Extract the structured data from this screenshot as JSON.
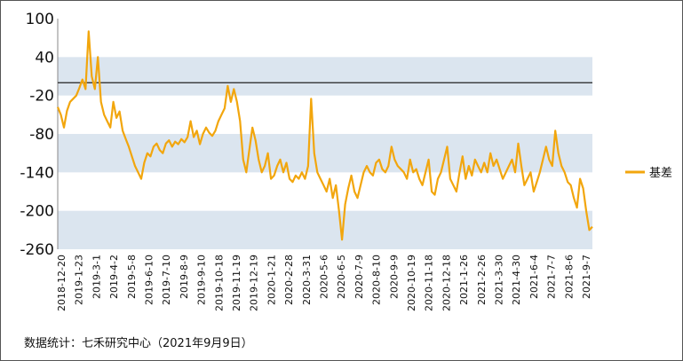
{
  "chart_data": {
    "type": "line",
    "ylim": [
      -260,
      100
    ],
    "yticks": [
      100,
      40,
      -20,
      -80,
      -140,
      -200,
      -260
    ],
    "reference_line": 0,
    "band_color": "#dbe5ef",
    "grid": false,
    "legend_position": "right",
    "x_tick_labels": [
      "2018-12-20",
      "2019-1-23",
      "2019-3-1",
      "2019-4-2",
      "2019-5-8",
      "2019-6-10",
      "2019-7-10",
      "2019-8-9",
      "2019-9-10",
      "2019-10-18",
      "2019-11-19",
      "2019-12-19",
      "2020-1-21",
      "2020-2-28",
      "2020-3-31",
      "2020-5-6",
      "2020-6-5",
      "2020-7-9",
      "2020-8-10",
      "2020-9-9",
      "2020-10-19",
      "2020-11-18",
      "2020-12-18",
      "2021-1-26",
      "2021-2-26",
      "2021-3-30",
      "2021-4-30",
      "2021-6-4",
      "2021-7-7",
      "2021-8-6",
      "2021-9-7"
    ],
    "series": [
      {
        "name": "基差",
        "color": "#f2a60d",
        "values": [
          -38,
          -50,
          -70,
          -44,
          -30,
          -25,
          -20,
          -8,
          5,
          -10,
          80,
          10,
          -10,
          40,
          -30,
          -50,
          -60,
          -70,
          -30,
          -55,
          -45,
          -75,
          -88,
          -100,
          -115,
          -130,
          -140,
          -150,
          -125,
          -110,
          -115,
          -100,
          -95,
          -105,
          -110,
          -95,
          -90,
          -100,
          -92,
          -96,
          -88,
          -93,
          -85,
          -60,
          -85,
          -75,
          -96,
          -80,
          -70,
          -78,
          -83,
          -75,
          -60,
          -50,
          -40,
          -5,
          -30,
          -10,
          -30,
          -60,
          -120,
          -140,
          -105,
          -70,
          -90,
          -120,
          -140,
          -130,
          -110,
          -150,
          -145,
          -130,
          -120,
          -140,
          -125,
          -150,
          -155,
          -145,
          -150,
          -140,
          -150,
          -130,
          -25,
          -110,
          -140,
          -150,
          -160,
          -170,
          -150,
          -180,
          -160,
          -200,
          -245,
          -190,
          -165,
          -145,
          -170,
          -180,
          -160,
          -140,
          -130,
          -140,
          -145,
          -125,
          -120,
          -135,
          -140,
          -130,
          -100,
          -120,
          -130,
          -135,
          -140,
          -150,
          -120,
          -140,
          -135,
          -150,
          -160,
          -140,
          -120,
          -170,
          -175,
          -150,
          -140,
          -120,
          -100,
          -150,
          -160,
          -170,
          -140,
          -115,
          -150,
          -130,
          -145,
          -120,
          -130,
          -140,
          -125,
          -140,
          -110,
          -130,
          -120,
          -135,
          -150,
          -140,
          -130,
          -120,
          -140,
          -95,
          -130,
          -160,
          -150,
          -140,
          -170,
          -155,
          -140,
          -120,
          -100,
          -120,
          -130,
          -75,
          -110,
          -130,
          -140,
          -155,
          -160,
          -180,
          -195,
          -150,
          -165,
          -200,
          -230,
          -225
        ]
      }
    ]
  },
  "source_note": "数据统计：七禾研究中心（2021年9月9日）"
}
